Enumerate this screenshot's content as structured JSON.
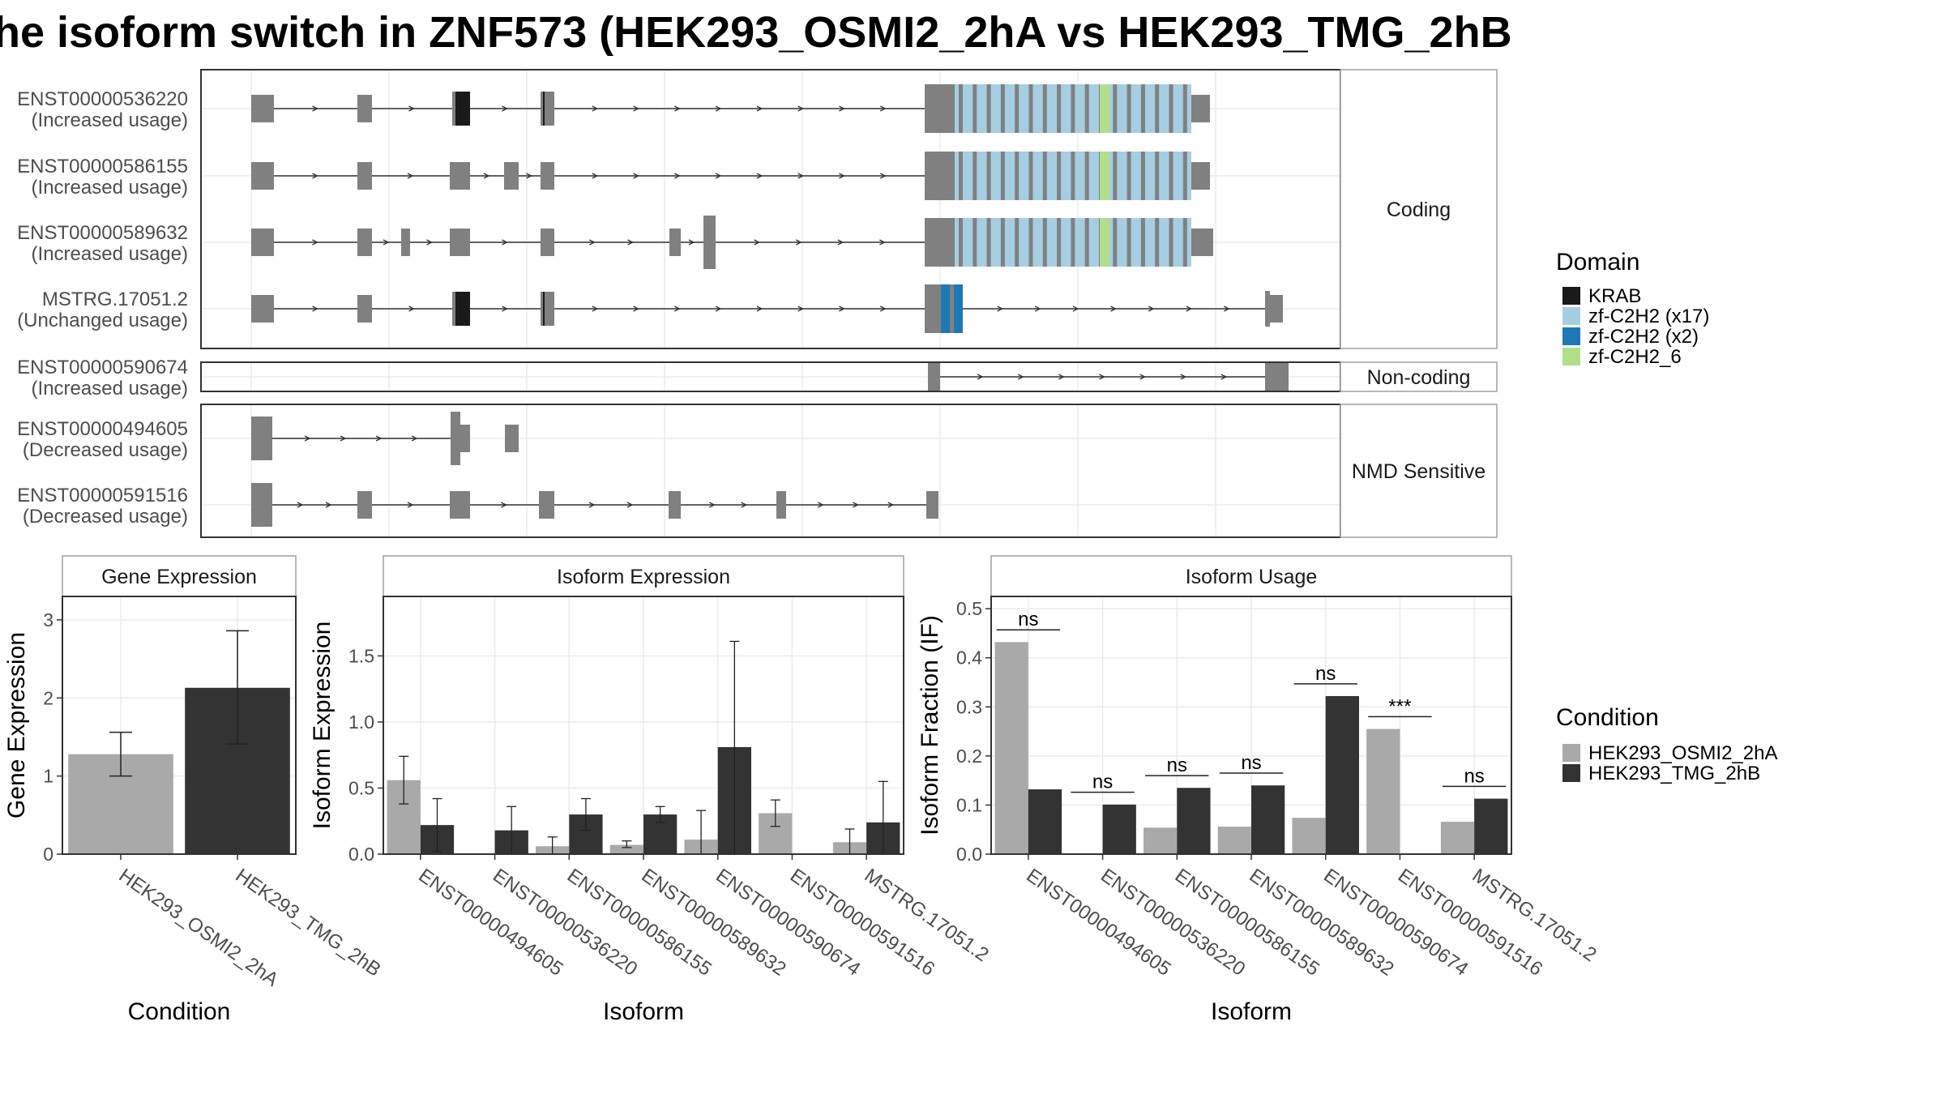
{
  "title": "he isoform switch in ZNF573 (HEK293_OSMI2_2hA vs HEK293_TMG_2hB",
  "structure": {
    "groups": [
      {
        "label": "Coding",
        "transcripts": [
          {
            "id": "ENST00000536220",
            "usage": "(Increased usage)"
          },
          {
            "id": "ENST00000586155",
            "usage": "(Increased usage)"
          },
          {
            "id": "ENST00000589632",
            "usage": "(Increased usage)"
          },
          {
            "id": "MSTRG.17051.2",
            "usage": "(Unchanged usage)"
          }
        ]
      },
      {
        "label": "Non-coding",
        "transcripts": [
          {
            "id": "ENST00000590674",
            "usage": "(Increased usage)"
          }
        ]
      },
      {
        "label": "NMD Sensitive",
        "transcripts": [
          {
            "id": "ENST00000494605",
            "usage": "(Decreased usage)"
          },
          {
            "id": "ENST00000591516",
            "usage": "(Decreased usage)"
          }
        ]
      }
    ]
  },
  "domain_legend": {
    "title": "Domain",
    "items": [
      {
        "label": "KRAB",
        "color": "#1a1a1a"
      },
      {
        "label": "zf-C2H2 (x17)",
        "color": "#a6cee3"
      },
      {
        "label": "zf-C2H2 (x2)",
        "color": "#1f78b4"
      },
      {
        "label": "zf-C2H2_6",
        "color": "#b2df8a"
      }
    ]
  },
  "condition_legend": {
    "title": "Condition",
    "items": [
      {
        "label": "HEK293_OSMI2_2hA",
        "color": "#a9a9a9"
      },
      {
        "label": "HEK293_TMG_2hB",
        "color": "#333333"
      }
    ]
  },
  "chart_data": [
    {
      "type": "bar",
      "title": "Gene Expression",
      "xlabel": "Condition",
      "ylabel": "Gene Expression",
      "ylim": [
        0,
        3.3
      ],
      "yticks": [
        0,
        1,
        2,
        3
      ],
      "categories": [
        "HEK293_OSMI2_2hA",
        "HEK293_TMG_2hB"
      ],
      "values": [
        1.28,
        2.13
      ],
      "errors": [
        [
          1.0,
          1.56
        ],
        [
          1.41,
          2.86
        ]
      ]
    },
    {
      "type": "bar",
      "title": "Isoform Expression",
      "xlabel": "Isoform",
      "ylabel": "Isoform Expression",
      "ylim": [
        0,
        1.95
      ],
      "yticks": [
        "0.0",
        "0.5",
        "1.0",
        "1.5"
      ],
      "categories": [
        "ENST00000494605",
        "ENST00000536220",
        "ENST00000586155",
        "ENST00000589632",
        "ENST00000590674",
        "ENST00000591516",
        "MSTRG.17051.2"
      ],
      "series": [
        {
          "name": "HEK293_OSMI2_2hA",
          "values": [
            0.56,
            0.0,
            0.06,
            0.07,
            0.11,
            0.31,
            0.09
          ],
          "errors": [
            [
              0.38,
              0.74
            ],
            [
              0.0,
              0.0
            ],
            [
              0.0,
              0.13
            ],
            [
              0.05,
              0.1
            ],
            [
              0.0,
              0.33
            ],
            [
              0.21,
              0.41
            ],
            [
              0.0,
              0.19
            ]
          ]
        },
        {
          "name": "HEK293_TMG_2hB",
          "values": [
            0.22,
            0.18,
            0.3,
            0.3,
            0.81,
            0.0,
            0.24
          ],
          "errors": [
            [
              0.02,
              0.42
            ],
            [
              0.0,
              0.36
            ],
            [
              0.18,
              0.42
            ],
            [
              0.24,
              0.36
            ],
            [
              0.0,
              1.61
            ],
            [
              0.0,
              0.0
            ],
            [
              0.0,
              0.55
            ]
          ]
        }
      ]
    },
    {
      "type": "bar",
      "title": "Isoform Usage",
      "xlabel": "Isoform",
      "ylabel": "Isoform Fraction (IF)",
      "ylim": [
        0,
        0.525
      ],
      "yticks": [
        "0.0",
        "0.1",
        "0.2",
        "0.3",
        "0.4",
        "0.5"
      ],
      "categories": [
        "ENST00000494605",
        "ENST00000536220",
        "ENST00000586155",
        "ENST00000589632",
        "ENST00000590674",
        "ENST00000591516",
        "MSTRG.17051.2"
      ],
      "series": [
        {
          "name": "HEK293_OSMI2_2hA",
          "values": [
            0.432,
            0.0,
            0.054,
            0.056,
            0.074,
            0.255,
            0.066
          ]
        },
        {
          "name": "HEK293_TMG_2hB",
          "values": [
            0.132,
            0.101,
            0.135,
            0.14,
            0.322,
            0.0,
            0.113
          ]
        }
      ],
      "significance": [
        "ns",
        "ns",
        "ns",
        "ns",
        "ns",
        "***",
        "ns"
      ]
    }
  ]
}
